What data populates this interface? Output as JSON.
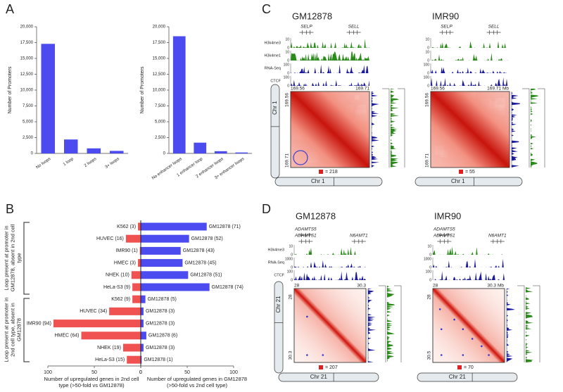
{
  "panel_labels": [
    "A",
    "B",
    "C",
    "D"
  ],
  "chart_data": [
    {
      "type": "bar",
      "ylabel": "Number of Promoters",
      "categories": [
        "No loops",
        "1 loop",
        "2 loops",
        "3+ loops"
      ],
      "values": [
        17300,
        2200,
        800,
        400
      ],
      "color": "#4b4bef",
      "ylim": [
        0,
        20000
      ],
      "yticks": [
        0,
        {
          "value": 2500,
          "label": "2,500"
        },
        {
          "value": 5000,
          "label": "5,000"
        },
        {
          "value": 7500,
          "label": "7,500"
        },
        {
          "value": 10000,
          "label": "10,000"
        },
        {
          "value": 12500,
          "label": "12,500"
        },
        {
          "value": 15000,
          "label": "15,000"
        },
        {
          "value": 17500,
          "label": "17,500"
        },
        {
          "value": 20000,
          "label": "20,000"
        }
      ]
    },
    {
      "type": "bar",
      "ylabel": "Number of Promoters",
      "categories": [
        "No enhancer loops",
        "1 enhancer loop",
        "2 enhancer loops",
        "3+ enhancer loops"
      ],
      "values": [
        18500,
        1700,
        350,
        150
      ],
      "color": "#4b4bef",
      "ylim": [
        0,
        20000
      ],
      "yticks": [
        0,
        {
          "value": 2500,
          "label": "2,500"
        },
        {
          "value": 5000,
          "label": "5,000"
        },
        {
          "value": 7500,
          "label": "7,500"
        },
        {
          "value": 10000,
          "label": "10,000"
        },
        {
          "value": 12500,
          "label": "12,500"
        },
        {
          "value": 15000,
          "label": "15,000"
        },
        {
          "value": 17500,
          "label": "17,500"
        },
        {
          "value": 20000,
          "label": "20,000"
        }
      ]
    },
    {
      "type": "diverging_bar",
      "groups": [
        "Loop present at promoter in GM12878, absent in 2nd cell type",
        "Loop present at promoter in 2nd cell type, absent in GM12878"
      ],
      "series": [
        {
          "name": "Number of upregulated genes in 2nd cell type (>50-fold vs GM12878)",
          "color": "#f05252",
          "values": [
            3,
            16,
            1,
            3,
            10,
            9,
            9,
            34,
            94,
            64,
            19,
            15
          ],
          "value_labels": [
            "K562 (3)",
            "HUVEC (16)",
            "IMR90 (1)",
            "HMEC (3)",
            "NHEK (10)",
            "HeLa-S3 (9)",
            "K562 (9)",
            "HUVEC (34)",
            "IMR90 (94)",
            "HMEC (64)",
            "NHEK (19)",
            "HeLa-S3 (15)"
          ]
        },
        {
          "name": "Number of upregulated genes in GM12878 (>50-fold vs 2nd cell type)",
          "color": "#4b4bef",
          "values": [
            71,
            52,
            43,
            45,
            51,
            74,
            5,
            3,
            3,
            6,
            3,
            1
          ],
          "value_labels": [
            "GM12878 (71)",
            "GM12878 (52)",
            "GM12878 (43)",
            "GM12878 (45)",
            "GM12878 (51)",
            "GM12878 (74)",
            "GM12878 (5)",
            "GM12878 (3)",
            "GM12878 (3)",
            "GM12878 (6)",
            "GM12878 (3)",
            "GM12878 (1)"
          ]
        }
      ],
      "xlim": [
        0,
        100
      ],
      "xticks": [
        0,
        50,
        100
      ]
    }
  ],
  "panel_c": {
    "track_names": [
      "H3k4me3",
      "H3k4me1",
      "RNA-Seq",
      "CTCF"
    ],
    "scale_min": 0,
    "unit": "Mb",
    "chrom": "Chr 1",
    "cells": [
      {
        "name": "GM12878",
        "genes": [
          "SELP",
          "SELL"
        ],
        "scales": [
          10,
          10,
          100,
          100
        ],
        "top_axis": [
          169.56,
          169.71
        ],
        "left_axis": [
          169.56,
          169.71
        ],
        "loops": "= 218"
      },
      {
        "name": "IMR90",
        "genes": [
          "SELP",
          "SELL"
        ],
        "scales": [
          10,
          10,
          100,
          100
        ],
        "top_axis": [
          169.56,
          169.71
        ],
        "left_axis": [
          169.56,
          169.71
        ],
        "loops": "= 55"
      }
    ]
  },
  "panel_d": {
    "track_names": [
      "H3k4me3",
      "RNA-Seq",
      "CTCF"
    ],
    "scale_min": 0,
    "unit": "Mb",
    "chrom": "Chr 21",
    "cells": [
      {
        "name": "GM12878",
        "genes": [
          "ADAMTS5",
          "ADAMTS1",
          "N6AMT1"
        ],
        "scales": [
          10,
          1000,
          100
        ],
        "top_axis": [
          28,
          30.3
        ],
        "left_axis": [
          28,
          30.3
        ],
        "loops": "= 207"
      },
      {
        "name": "IMR90",
        "genes": [
          "ADAMTS5",
          "ADAMTS1",
          "N6AMT1"
        ],
        "scales": [
          10,
          1000,
          100
        ],
        "top_axis": [
          28,
          30.3
        ],
        "left_axis": [
          28,
          30.5
        ],
        "loops": "= 70"
      }
    ]
  }
}
